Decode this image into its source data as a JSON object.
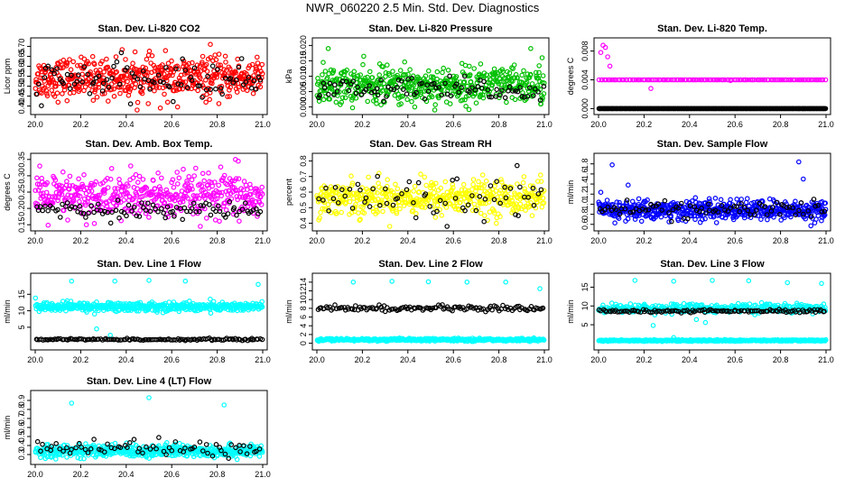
{
  "figure": {
    "title": "NWR_060220  2.5 Min. Std. Dev. Diagnostics"
  },
  "chart_data": [
    {
      "id": "co2",
      "type": "scatter",
      "title": "Stan. Dev. Li-820 CO2",
      "ylabel": "Licor ppm",
      "xlim": [
        20.0,
        21.0
      ],
      "ylim": [
        0.38,
        0.72
      ],
      "xticks": [
        "20.0",
        "20.2",
        "20.4",
        "20.6",
        "20.8",
        "21.0"
      ],
      "yticks": [
        "0.40",
        "0.45",
        "0.50",
        "0.55",
        "0.60",
        "0.65",
        "0.70"
      ],
      "series": [
        {
          "color": "#ff0000",
          "n": 520,
          "center": 0.54,
          "spread": 0.05,
          "outliers": [
            [
              20.77,
              0.71
            ],
            [
              20.55,
              0.39
            ]
          ]
        },
        {
          "color": "#000000",
          "n": 90,
          "center": 0.53,
          "spread": 0.045
        }
      ]
    },
    {
      "id": "pressure",
      "type": "scatter",
      "title": "Stan. Dev. Li-820 Pressure",
      "ylabel": "kPa",
      "xlim": [
        20.0,
        21.0
      ],
      "ylim": [
        -0.001,
        0.021
      ],
      "xticks": [
        "20.0",
        "20.2",
        "20.4",
        "20.6",
        "20.8",
        "21.0"
      ],
      "yticks": [
        "0.000",
        "0.005",
        "0.010",
        "0.015",
        "0.020"
      ],
      "series": [
        {
          "color": "#00c000",
          "n": 520,
          "center": 0.007,
          "spread": 0.003,
          "outliers": [
            [
              20.05,
              0.019
            ],
            [
              20.94,
              0.019
            ],
            [
              20.99,
              0.016
            ],
            [
              20.72,
              0.014
            ],
            [
              20.43,
              0.0
            ]
          ]
        },
        {
          "color": "#000000",
          "n": 90,
          "center": 0.0055,
          "spread": 0.002
        }
      ]
    },
    {
      "id": "temp",
      "type": "scatter",
      "title": "Stan. Dev. Li-820 Temp.",
      "ylabel": "degrees C",
      "xlim": [
        20.0,
        21.0
      ],
      "ylim": [
        -0.0002,
        0.0092
      ],
      "xticks": [
        "20.0",
        "20.2",
        "20.4",
        "20.6",
        "20.8",
        "21.0"
      ],
      "yticks": [
        "0.000",
        "0.004",
        "0.008"
      ],
      "series": [
        {
          "color": "#ff00ff",
          "n": 130,
          "center": 0.004,
          "spread": 0.0,
          "outliers": [
            [
              20.02,
              0.0088
            ],
            [
              20.03,
              0.0085
            ],
            [
              20.01,
              0.0078
            ],
            [
              20.04,
              0.0072
            ],
            [
              20.05,
              0.0059
            ],
            [
              20.23,
              0.0028
            ],
            [
              20.58,
              0.0039
            ]
          ]
        },
        {
          "color": "#000000",
          "n": 320,
          "center": 0.0,
          "spread": 0.0
        }
      ]
    },
    {
      "id": "ambbox",
      "type": "scatter",
      "title": "Stan. Dev. Amb. Box Temp.",
      "ylabel": "degrees C",
      "xlim": [
        20.0,
        21.0
      ],
      "ylim": [
        0.145,
        0.355
      ],
      "xticks": [
        "20.0",
        "20.2",
        "20.4",
        "20.6",
        "20.8",
        "21.0"
      ],
      "yticks": [
        "0.15",
        "0.20",
        "0.25",
        "0.30",
        "0.35"
      ],
      "series": [
        {
          "color": "#ff00ff",
          "n": 480,
          "center": 0.235,
          "spread": 0.035,
          "outliers": [
            [
              20.88,
              0.35
            ],
            [
              20.42,
              0.33
            ]
          ]
        },
        {
          "color": "#000000",
          "n": 95,
          "center": 0.195,
          "spread": 0.012
        }
      ]
    },
    {
      "id": "rh",
      "type": "scatter",
      "title": "Stan. Dev. Gas Stream RH",
      "ylabel": "percent",
      "xlim": [
        20.0,
        21.0
      ],
      "ylim": [
        0.38,
        0.82
      ],
      "xticks": [
        "20.0",
        "20.2",
        "20.4",
        "20.6",
        "20.8",
        "21.0"
      ],
      "yticks": [
        "0.4",
        "0.5",
        "0.6",
        "0.7",
        "0.8"
      ],
      "series": [
        {
          "color": "#ffff00",
          "n": 500,
          "center": 0.565,
          "spread": 0.055
        },
        {
          "color": "#000000",
          "n": 65,
          "center": 0.56,
          "spread": 0.07,
          "outliers": [
            [
              20.88,
              0.77
            ]
          ]
        }
      ]
    },
    {
      "id": "sflow",
      "type": "scatter",
      "title": "Stan. Dev. Sample Flow",
      "ylabel": "ml/min",
      "xlim": [
        20.0,
        21.0
      ],
      "ylim": [
        0.56,
        1.92
      ],
      "xticks": [
        "20.0",
        "20.2",
        "20.4",
        "20.6",
        "20.8",
        "21.0"
      ],
      "yticks": [
        "0.6",
        "0.8",
        "1.0",
        "1.2",
        "1.4",
        "1.6",
        "1.8"
      ],
      "series": [
        {
          "color": "#0000ff",
          "n": 560,
          "center": 0.88,
          "spread": 0.1,
          "outliers": [
            [
              20.06,
              1.78
            ],
            [
              20.88,
              1.84
            ],
            [
              20.13,
              1.38
            ],
            [
              20.9,
              1.5
            ]
          ]
        },
        {
          "color": "#000000",
          "n": 80,
          "center": 0.9,
          "spread": 0.08
        }
      ]
    },
    {
      "id": "line1",
      "type": "scatter",
      "title": "Stan. Dev. Line 1 Flow",
      "ylabel": "ml/min",
      "xlim": [
        20.0,
        21.0
      ],
      "ylim": [
        -0.5,
        20.0
      ],
      "xticks": [
        "20.0",
        "20.2",
        "20.4",
        "20.6",
        "20.8",
        "21.0"
      ],
      "yticks": [
        "5",
        "10",
        "15"
      ],
      "series": [
        {
          "color": "#00ffff",
          "n": 480,
          "center": 11.2,
          "spread": 0.7,
          "outliers": [
            [
              20.27,
              4.5
            ],
            [
              20.33,
              2.6
            ],
            [
              20.16,
              19.0
            ],
            [
              20.35,
              19.0
            ],
            [
              20.5,
              19.2
            ],
            [
              20.66,
              19.0
            ],
            [
              20.98,
              18.0
            ]
          ]
        },
        {
          "color": "#000000",
          "n": 130,
          "center": 1.3,
          "spread": 0.15
        }
      ]
    },
    {
      "id": "line2",
      "type": "scatter",
      "title": "Stan. Dev. Line 2 Flow",
      "ylabel": "ml/min",
      "xlim": [
        20.0,
        21.0
      ],
      "ylim": [
        -0.5,
        15.0
      ],
      "xticks": [
        "20.0",
        "20.2",
        "20.4",
        "20.6",
        "20.8",
        "21.0"
      ],
      "yticks": [
        "0",
        "2",
        "4",
        "6",
        "8",
        "10",
        "12",
        "14"
      ],
      "series": [
        {
          "color": "#00ffff",
          "n": 420,
          "center": 0.8,
          "spread": 0.15,
          "outliers": [
            [
              20.16,
              14.0
            ],
            [
              20.33,
              14.2
            ],
            [
              20.49,
              14.1
            ],
            [
              20.66,
              14.0
            ],
            [
              20.83,
              14.0
            ],
            [
              20.98,
              12.5
            ]
          ]
        },
        {
          "color": "#000000",
          "n": 130,
          "center": 8.0,
          "spread": 0.3
        }
      ]
    },
    {
      "id": "line3",
      "type": "scatter",
      "title": "Stan. Dev. Line 3 Flow",
      "ylabel": "ml/min",
      "xlim": [
        20.0,
        21.0
      ],
      "ylim": [
        -0.5,
        17.5
      ],
      "xticks": [
        "20.0",
        "20.2",
        "20.4",
        "20.6",
        "20.8",
        "21.0"
      ],
      "yticks": [
        "5",
        "10",
        "15"
      ],
      "series": [
        {
          "color": "#00ffff",
          "n": 480,
          "center": 0.8,
          "spread": 0.1,
          "outliers": [
            [
              20.16,
              16.8
            ],
            [
              20.33,
              16.6
            ],
            [
              20.5,
              16.8
            ],
            [
              20.66,
              16.7
            ],
            [
              20.83,
              16.2
            ],
            [
              20.98,
              16.0
            ]
          ]
        },
        {
          "color": "#00ffff",
          "n": 330,
          "center": 9.4,
          "spread": 0.6,
          "outliers": [
            [
              20.47,
              5.6
            ],
            [
              20.43,
              6.4
            ],
            [
              20.24,
              4.8
            ],
            [
              20.33,
              1.6
            ]
          ]
        },
        {
          "color": "#000000",
          "n": 120,
          "center": 8.6,
          "spread": 0.2
        }
      ]
    },
    {
      "id": "line4",
      "type": "scatter",
      "title": "Stan. Dev. Line 4 (LT) Flow",
      "ylabel": "ml/min",
      "xlim": [
        20.0,
        21.0
      ],
      "ylim": [
        0.24,
        0.96
      ],
      "xticks": [
        "20.0",
        "20.2",
        "20.4",
        "20.6",
        "20.8",
        "21.0"
      ],
      "yticks": [
        "0.3",
        "0.4",
        "0.5",
        "0.6",
        "0.7",
        "0.8",
        "0.9"
      ],
      "series": [
        {
          "color": "#00ffff",
          "n": 520,
          "center": 0.34,
          "spread": 0.035,
          "outliers": [
            [
              20.16,
              0.87
            ],
            [
              20.5,
              0.93
            ],
            [
              20.83,
              0.85
            ]
          ]
        },
        {
          "color": "#000000",
          "n": 70,
          "center": 0.37,
          "spread": 0.04
        }
      ]
    }
  ]
}
